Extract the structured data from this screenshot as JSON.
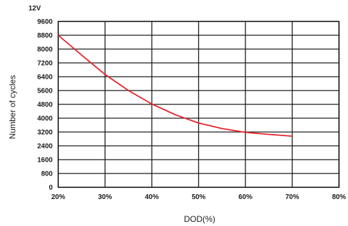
{
  "chart_data": {
    "type": "line",
    "title": "12V",
    "xlabel": "DOD(%)",
    "ylabel": "Number of cycles",
    "x_ticks": [
      "20%",
      "30%",
      "40%",
      "50%",
      "60%",
      "70%",
      "80%"
    ],
    "y_ticks": [
      "0",
      "800",
      "1600",
      "2400",
      "3200",
      "4000",
      "4800",
      "5600",
      "6400",
      "7200",
      "8000",
      "8800",
      "9600"
    ],
    "xlim": [
      20,
      80
    ],
    "ylim": [
      0,
      9600
    ],
    "grid": true,
    "series": [
      {
        "x": [
          20,
          25,
          30,
          35,
          40,
          45,
          50,
          55,
          60,
          65,
          70
        ],
        "y": [
          8800,
          7650,
          6530,
          5600,
          4820,
          4200,
          3720,
          3400,
          3180,
          3060,
          2960
        ],
        "color": "#e8202a"
      }
    ]
  }
}
